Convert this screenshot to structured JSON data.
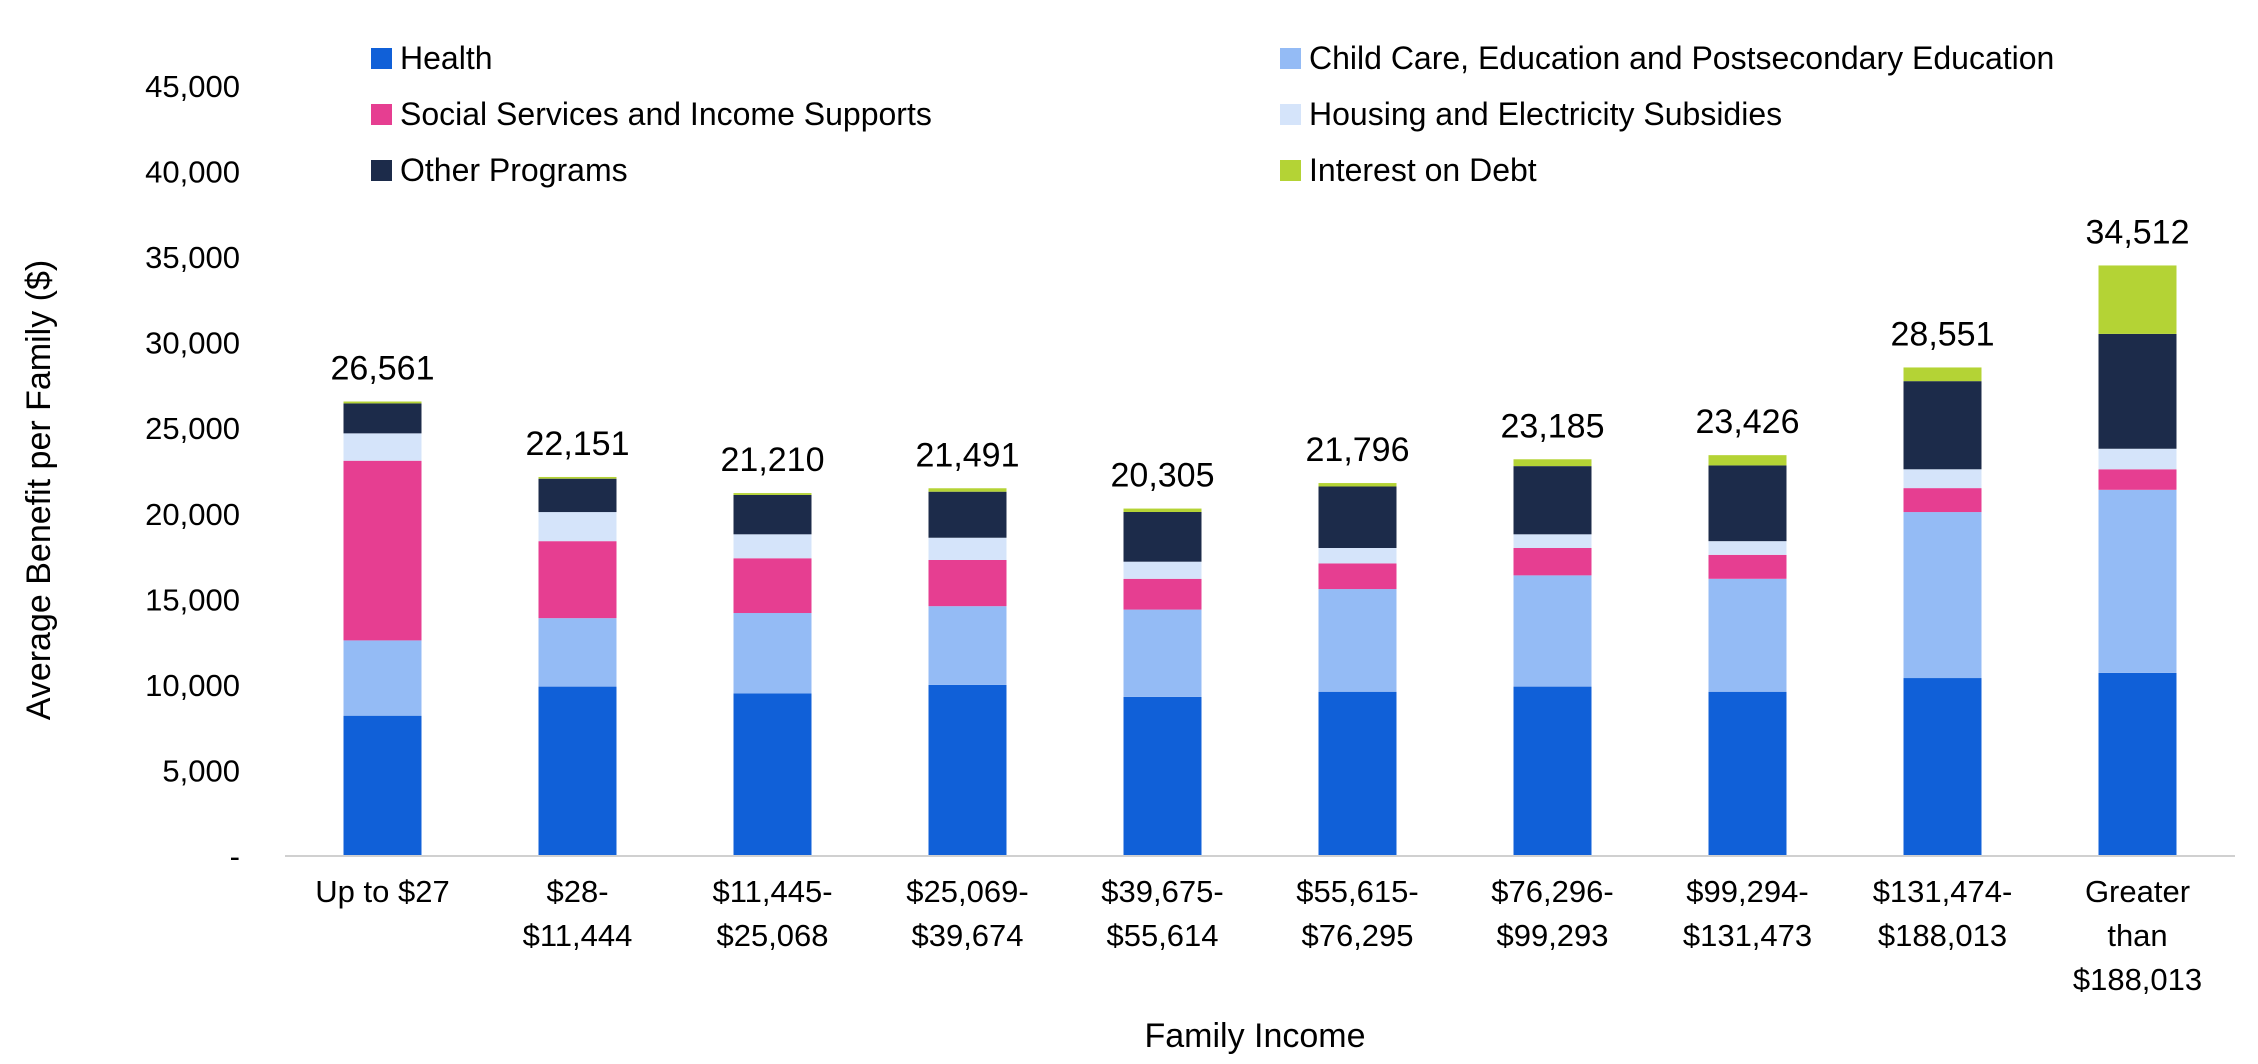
{
  "chart_data": {
    "type": "bar",
    "stacked": true,
    "xlabel": "Family Income",
    "ylabel": "Average Benefit per Family ($)",
    "ylim": [
      0,
      45000
    ],
    "ytick_values": [
      0,
      5000,
      10000,
      15000,
      20000,
      25000,
      30000,
      35000,
      40000,
      45000
    ],
    "ytick_labels": [
      "-",
      "5,000",
      "10,000",
      "15,000",
      "20,000",
      "25,000",
      "30,000",
      "35,000",
      "40,000",
      "45,000"
    ],
    "grid": false,
    "legend_position": "top",
    "categories": [
      [
        "Up to $27"
      ],
      [
        "$28-",
        "$11,444"
      ],
      [
        "$11,445-",
        "$25,068"
      ],
      [
        "$25,069-",
        "$39,674"
      ],
      [
        "$39,675-",
        "$55,614"
      ],
      [
        "$55,615-",
        "$76,295"
      ],
      [
        "$76,296-",
        "$99,293"
      ],
      [
        "$99,294-",
        "$131,473"
      ],
      [
        "$131,474-",
        "$188,013"
      ],
      [
        "Greater",
        "than",
        "$188,013"
      ]
    ],
    "totals": [
      26561,
      22151,
      21210,
      21491,
      20305,
      21796,
      23185,
      23426,
      28551,
      34512
    ],
    "total_labels": [
      "26,561",
      "22,151",
      "21,210",
      "21,491",
      "20,305",
      "21,796",
      "23,185",
      "23,426",
      "28,551",
      "34,512"
    ],
    "series": [
      {
        "name": "Health",
        "color": "#1060d8",
        "values": [
          8200,
          9900,
          9500,
          10000,
          9300,
          9600,
          9900,
          9600,
          10400,
          10700
        ]
      },
      {
        "name": "Child Care, Education and Postsecondary Education",
        "color": "#94bbf5",
        "values": [
          4400,
          4000,
          4700,
          4600,
          5100,
          6000,
          6500,
          6600,
          9700,
          10700
        ]
      },
      {
        "name": "Social Services and Income Supports",
        "color": "#e63e91",
        "values": [
          10500,
          4500,
          3200,
          2700,
          1800,
          1500,
          1600,
          1400,
          1400,
          1200
        ]
      },
      {
        "name": "Housing and Electricity Subsidies",
        "color": "#d5e4fa",
        "values": [
          1600,
          1700,
          1400,
          1300,
          1000,
          900,
          800,
          800,
          1100,
          1200
        ]
      },
      {
        "name": "Other Programs",
        "color": "#1c2b4a",
        "values": [
          1750,
          1951,
          2300,
          2691,
          2905,
          3596,
          3985,
          4426,
          5151,
          6712
        ]
      },
      {
        "name": "Interest on Debt",
        "color": "#b4d335",
        "values": [
          111,
          100,
          110,
          200,
          200,
          200,
          400,
          600,
          800,
          4000
        ]
      }
    ],
    "legend_layout": "two-column, three rows"
  }
}
